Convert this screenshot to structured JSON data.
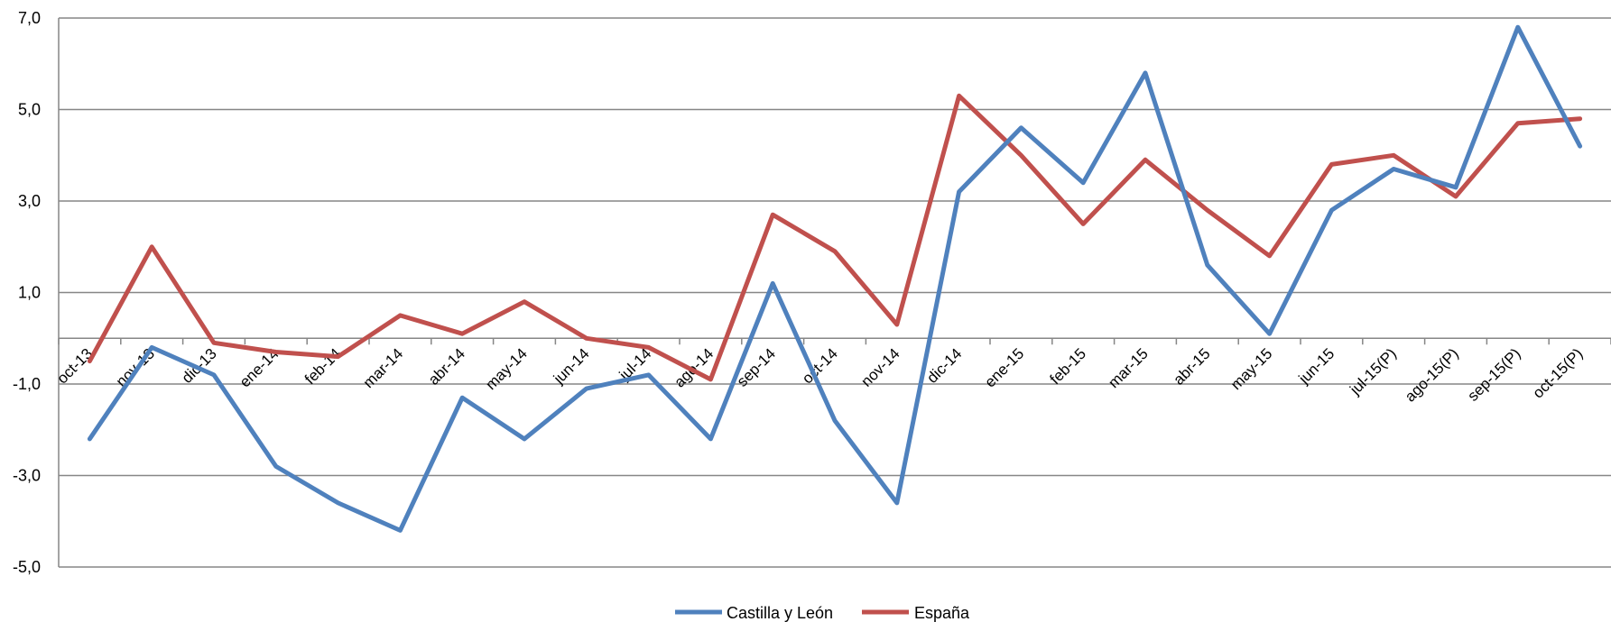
{
  "chart_data": {
    "type": "line",
    "categories": [
      "oct-13",
      "nov-13",
      "dic-13",
      "ene-14",
      "feb-14",
      "mar-14",
      "abr-14",
      "may-14",
      "jun-14",
      "jul-14",
      "ago-14",
      "sep-14",
      "oct-14",
      "nov-14",
      "dic-14",
      "ene-15",
      "feb-15",
      "mar-15",
      "abr-15",
      "may-15",
      "jun-15",
      "jul-15(P)",
      "ago-15(P)",
      "sep-15(P)",
      "oct-15(P)"
    ],
    "series": [
      {
        "name": "Castilla y León",
        "color": "#4F81BD",
        "values": [
          -2.2,
          -0.2,
          -0.8,
          -2.8,
          -3.6,
          -4.2,
          -1.3,
          -2.2,
          -1.1,
          -0.8,
          -2.2,
          1.2,
          -1.8,
          -3.6,
          3.2,
          4.6,
          3.4,
          5.8,
          1.6,
          0.1,
          2.8,
          3.7,
          3.3,
          6.8,
          4.2
        ]
      },
      {
        "name": "España",
        "color": "#C0504D",
        "values": [
          -0.5,
          2.0,
          -0.1,
          -0.3,
          -0.4,
          0.5,
          0.1,
          0.8,
          0.0,
          -0.2,
          -0.9,
          2.7,
          1.9,
          0.3,
          5.3,
          4.0,
          2.5,
          3.9,
          2.8,
          1.8,
          3.8,
          4.0,
          3.1,
          4.7,
          4.8
        ]
      }
    ],
    "ylim": [
      -5,
      7
    ],
    "yticks": [
      "7,0",
      "5,0",
      "3,0",
      "1,0",
      "-1,0",
      "-3,0",
      "-5,0"
    ],
    "ytick_values": [
      7,
      5,
      3,
      1,
      -1,
      -3,
      -5
    ],
    "grid": true,
    "legend_position": "bottom"
  }
}
